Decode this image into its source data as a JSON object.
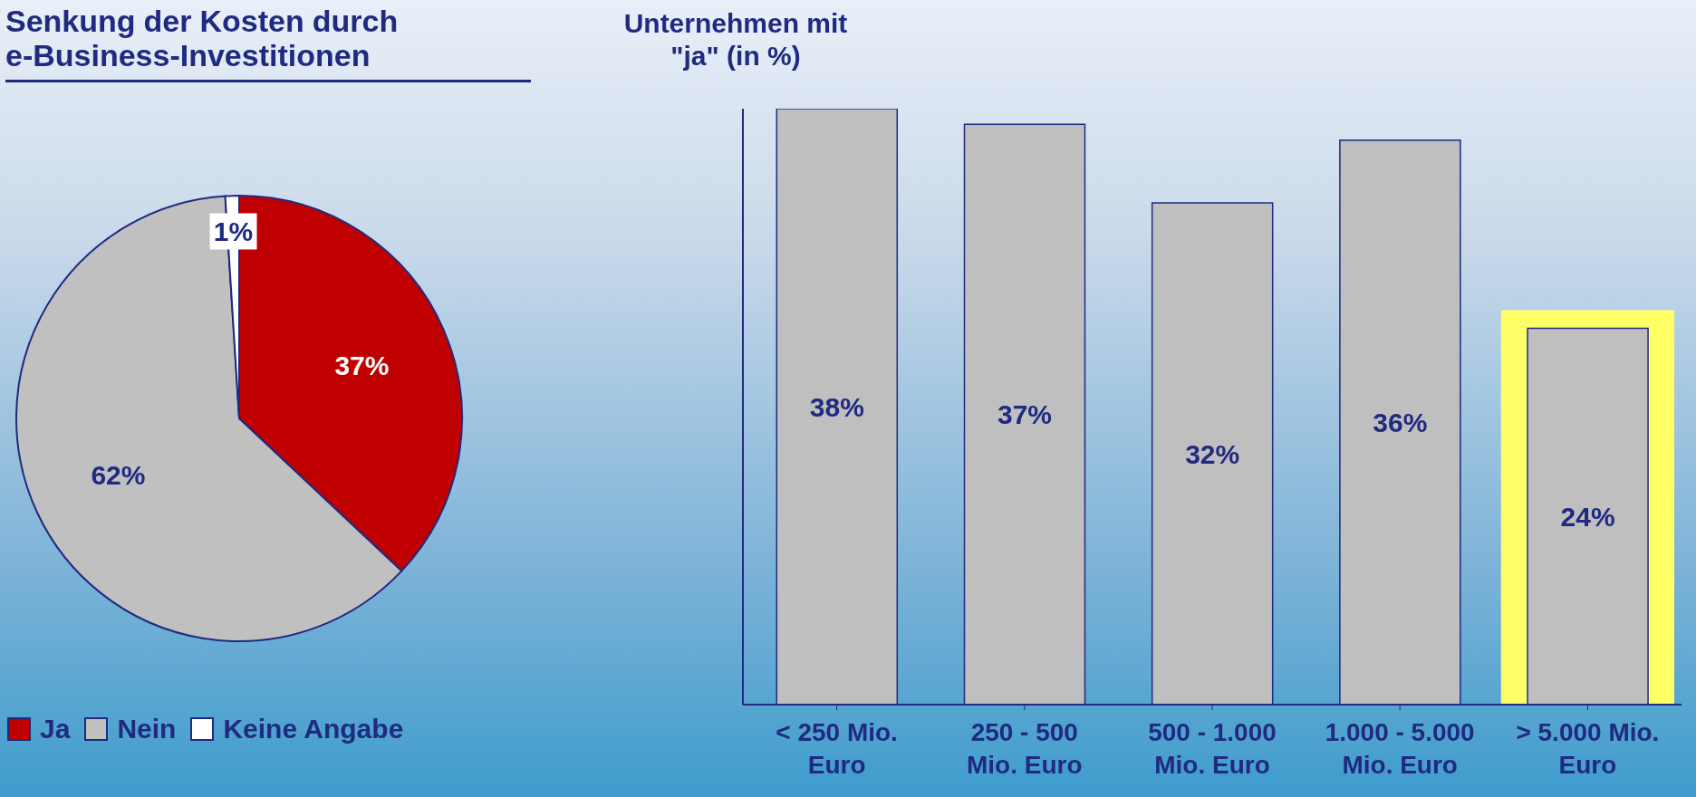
{
  "chart_data": [
    {
      "type": "pie",
      "title": "Senkung der Kosten durch e-Business-Investitionen",
      "categories": [
        "Ja",
        "Nein",
        "Keine Angabe"
      ],
      "values": [
        37,
        62,
        1
      ],
      "colors": [
        "#c00000",
        "#c0c0c0",
        "#ffffff"
      ],
      "value_labels": [
        "37%",
        "62%",
        "1%"
      ],
      "legend": "bottom left"
    },
    {
      "type": "bar",
      "ylabel": "Unternehmen mit \"ja\" (in %)",
      "categories": [
        "< 250 Mio. Euro",
        "250 - 500 Mio. Euro",
        "500 - 1.000 Mio. Euro",
        "1.000 - 5.000 Mio. Euro",
        "> 5.000 Mio. Euro"
      ],
      "values": [
        38,
        37,
        32,
        36,
        24
      ],
      "color": "#bfbfbf",
      "value_labels": [
        "38%",
        "37%",
        "32%",
        "36%",
        "24%"
      ],
      "bands": [
        {
          "axis": "x",
          "from": "> 5.000 Mio. Euro",
          "to": "> 5.000 Mio. Euro",
          "color": "#ffff66"
        }
      ]
    }
  ]
}
